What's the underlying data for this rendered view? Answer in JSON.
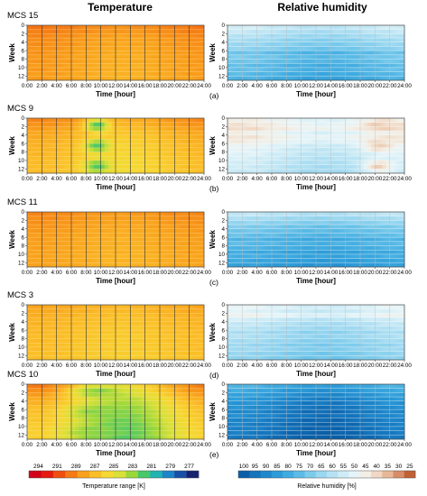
{
  "titles": {
    "left": "Temperature",
    "right": "Relative humidity"
  },
  "colorbars": {
    "temperature": {
      "label": "Temperature range [K]",
      "ticks": [
        "294",
        "291",
        "289",
        "287",
        "285",
        "283",
        "281",
        "279",
        "277"
      ],
      "colors": [
        "#d3001a",
        "#e51a10",
        "#ef4e10",
        "#f57a14",
        "#f9a01c",
        "#fbbe28",
        "#f6d832",
        "#d9e038",
        "#9ad83a",
        "#48c86a",
        "#20b4b0",
        "#1c84c8",
        "#1850a8",
        "#182070"
      ]
    },
    "humidity": {
      "label": "Relative humidity [%]",
      "ticks": [
        "100",
        "95",
        "90",
        "85",
        "80",
        "75",
        "70",
        "65",
        "60",
        "55",
        "50",
        "45",
        "40",
        "35",
        "30",
        "25"
      ],
      "colors": [
        "#0a5fa8",
        "#1474bc",
        "#1f88cc",
        "#2c9bd8",
        "#40abe0",
        "#5cbbe6",
        "#7ccbec",
        "#9ad7f0",
        "#b6e2f3",
        "#cfecf6",
        "#e6f4f8",
        "#f2efe6",
        "#f0d8c4",
        "#e8b898",
        "#d88c68",
        "#c06034"
      ]
    }
  },
  "chart_data": [
    {
      "type": "heatmap",
      "panel_id": "(a)",
      "title": "MCS 15",
      "variable": "Temperature",
      "xlabel": "Time [hour]",
      "ylabel": "Week",
      "x_ticks": [
        "0:00",
        "2:00",
        "4:00",
        "6:00",
        "8:00",
        "10:00",
        "12:00",
        "14:00",
        "16:00",
        "18:00",
        "20:00",
        "22:00",
        "24:00"
      ],
      "y_ticks": [
        "0",
        "2",
        "4",
        "6",
        "8",
        "10",
        "12"
      ],
      "xlim": [
        0,
        24
      ],
      "ylim": [
        13,
        0
      ],
      "unit": "K",
      "week_values": [
        289.5,
        289.2,
        288.9,
        288.7,
        288.6,
        288.5,
        288.4,
        288.3,
        288.3,
        288.2,
        288.2,
        288.1,
        288.1
      ],
      "amplitude": 0.5,
      "hot_spot": null
    },
    {
      "type": "heatmap",
      "panel_id": "(a)",
      "title": "",
      "variable": "Relative humidity",
      "xlabel": "Time [hour]",
      "ylabel": "Week",
      "x_ticks": [
        "0:00",
        "2:00",
        "4:00",
        "6:00",
        "8:00",
        "10:00",
        "12:00",
        "14:00",
        "16:00",
        "18:00",
        "20:00",
        "22:00",
        "24:00"
      ],
      "y_ticks": [
        "0",
        "2",
        "4",
        "6",
        "8",
        "10",
        "12"
      ],
      "xlim": [
        0,
        24
      ],
      "ylim": [
        13,
        0
      ],
      "unit": "%",
      "week_values": [
        55,
        58,
        61,
        64,
        66,
        68,
        74,
        72,
        73,
        76,
        75,
        77,
        79
      ],
      "amplitude": 3,
      "hot_spot": null
    },
    {
      "type": "heatmap",
      "panel_id": "(b)",
      "title": "MCS 9",
      "variable": "Temperature",
      "xlabel": "Time [hour]",
      "ylabel": "Week",
      "x_ticks": [
        "0:00",
        "2:00",
        "4:00",
        "6:00",
        "8:00",
        "10:00",
        "12:00",
        "14:00",
        "16:00",
        "18:00",
        "20:00",
        "22:00",
        "24:00"
      ],
      "y_ticks": [
        "0",
        "2",
        "4",
        "6",
        "8",
        "10",
        "12"
      ],
      "xlim": [
        0,
        24
      ],
      "ylim": [
        13,
        0
      ],
      "unit": "K",
      "week_values": [
        288.6,
        288.2,
        287.8,
        287.4,
        287.2,
        287.0,
        286.8,
        286.7,
        286.6,
        286.5,
        286.4,
        286.4,
        286.3
      ],
      "amplitude": 0.8,
      "hot_spot": {
        "hour": 9.5,
        "value": 281.5,
        "width": 1.6
      }
    },
    {
      "type": "heatmap",
      "panel_id": "(b)",
      "title": "",
      "variable": "Relative humidity",
      "xlabel": "Time [hour]",
      "ylabel": "Week",
      "x_ticks": [
        "0:00",
        "2:00",
        "4:00",
        "6:00",
        "8:00",
        "10:00",
        "12:00",
        "14:00",
        "16:00",
        "18:00",
        "20:00",
        "22:00",
        "24:00"
      ],
      "y_ticks": [
        "0",
        "2",
        "4",
        "6",
        "8",
        "10",
        "12"
      ],
      "xlim": [
        0,
        24
      ],
      "ylim": [
        13,
        0
      ],
      "unit": "%",
      "week_values": [
        46,
        44,
        42,
        47,
        44,
        46,
        50,
        52,
        53,
        55,
        56,
        57,
        58
      ],
      "amplitude": 4,
      "hot_spot": {
        "hour": 20.5,
        "value": 36,
        "width": 2
      }
    },
    {
      "type": "heatmap",
      "panel_id": "(c)",
      "title": "MCS 11",
      "variable": "Temperature",
      "xlabel": "Time [hour]",
      "ylabel": "Week",
      "x_ticks": [
        "0:00",
        "2:00",
        "4:00",
        "6:00",
        "8:00",
        "10:00",
        "12:00",
        "14:00",
        "16:00",
        "18:00",
        "20:00",
        "22:00",
        "24:00"
      ],
      "y_ticks": [
        "0",
        "2",
        "4",
        "6",
        "8",
        "10",
        "12"
      ],
      "xlim": [
        0,
        24
      ],
      "ylim": [
        13,
        0
      ],
      "unit": "K",
      "week_values": [
        289.0,
        288.8,
        288.6,
        288.5,
        288.3,
        288.2,
        288.1,
        288.1,
        288.0,
        288.0,
        287.9,
        287.9,
        287.9
      ],
      "amplitude": 0.4,
      "hot_spot": null
    },
    {
      "type": "heatmap",
      "panel_id": "(c)",
      "title": "",
      "variable": "Relative humidity",
      "xlabel": "Time [hour]",
      "ylabel": "Week",
      "x_ticks": [
        "0:00",
        "2:00",
        "4:00",
        "6:00",
        "8:00",
        "10:00",
        "12:00",
        "14:00",
        "16:00",
        "18:00",
        "20:00",
        "22:00",
        "24:00"
      ],
      "y_ticks": [
        "0",
        "2",
        "4",
        "6",
        "8",
        "10",
        "12"
      ],
      "xlim": [
        0,
        24
      ],
      "ylim": [
        13,
        0
      ],
      "unit": "%",
      "week_values": [
        58,
        62,
        66,
        70,
        72,
        74,
        78,
        76,
        78,
        81,
        80,
        82,
        84
      ],
      "amplitude": 2,
      "hot_spot": null
    },
    {
      "type": "heatmap",
      "panel_id": "(d)",
      "title": "MCS 3",
      "variable": "Temperature",
      "xlabel": "Time [hour]",
      "ylabel": "Week",
      "x_ticks": [
        "0:00",
        "2:00",
        "4:00",
        "6:00",
        "8:00",
        "10:00",
        "12:00",
        "14:00",
        "16:00",
        "18:00",
        "20:00",
        "22:00",
        "24:00"
      ],
      "y_ticks": [
        "0",
        "2",
        "4",
        "6",
        "8",
        "10",
        "12"
      ],
      "xlim": [
        0,
        24
      ],
      "ylim": [
        13,
        0
      ],
      "unit": "K",
      "week_values": [
        287.8,
        287.6,
        287.4,
        287.2,
        287.1,
        287.0,
        286.9,
        286.8,
        286.8,
        286.7,
        286.7,
        286.6,
        286.6
      ],
      "amplitude": 0.4,
      "hot_spot": null
    },
    {
      "type": "heatmap",
      "panel_id": "(d)",
      "title": "",
      "variable": "Relative humidity",
      "xlabel": "Time [hour]",
      "ylabel": "Week",
      "x_ticks": [
        "0:00",
        "2:00",
        "4:00",
        "6:00",
        "8:00",
        "10:00",
        "12:00",
        "14:00",
        "16:00",
        "18:00",
        "20:00",
        "22:00",
        "24:00"
      ],
      "y_ticks": [
        "0",
        "2",
        "4",
        "6",
        "8",
        "10",
        "12"
      ],
      "xlim": [
        0,
        24
      ],
      "ylim": [
        13,
        0
      ],
      "unit": "%",
      "week_values": [
        50,
        52,
        48,
        55,
        58,
        60,
        63,
        62,
        64,
        66,
        65,
        67,
        68
      ],
      "amplitude": 3,
      "hot_spot": null
    },
    {
      "type": "heatmap",
      "panel_id": "(e)",
      "title": "MCS 10",
      "variable": "Temperature",
      "xlabel": "Time [hour]",
      "ylabel": "Week",
      "x_ticks": [
        "0:00",
        "2:00",
        "4:00",
        "6:00",
        "8:00",
        "10:00",
        "12:00",
        "14:00",
        "16:00",
        "18:00",
        "20:00",
        "22:00",
        "24:00"
      ],
      "y_ticks": [
        "0",
        "2",
        "4",
        "6",
        "8",
        "10",
        "12"
      ],
      "xlim": [
        0,
        24
      ],
      "ylim": [
        13,
        0
      ],
      "unit": "K",
      "week_values": [
        287.6,
        287.0,
        286.4,
        285.8,
        285.4,
        285.0,
        284.8,
        284.6,
        284.4,
        284.2,
        284.0,
        284.0,
        283.9
      ],
      "amplitude": 2.2,
      "hot_spot": {
        "hour": 9.5,
        "value": 282.6,
        "width": 3.5
      }
    },
    {
      "type": "heatmap",
      "panel_id": "(e)",
      "title": "",
      "variable": "Relative humidity",
      "xlabel": "Time [hour]",
      "ylabel": "Week",
      "x_ticks": [
        "0:00",
        "2:00",
        "4:00",
        "6:00",
        "8:00",
        "10:00",
        "12:00",
        "14:00",
        "16:00",
        "18:00",
        "20:00",
        "22:00",
        "24:00"
      ],
      "y_ticks": [
        "0",
        "2",
        "4",
        "6",
        "8",
        "10",
        "12"
      ],
      "xlim": [
        0,
        24
      ],
      "ylim": [
        13,
        0
      ],
      "unit": "%",
      "week_values": [
        80,
        83,
        86,
        88,
        90,
        91,
        93,
        92,
        94,
        95,
        95,
        96,
        97
      ],
      "amplitude": 4,
      "hot_spot": null
    }
  ]
}
